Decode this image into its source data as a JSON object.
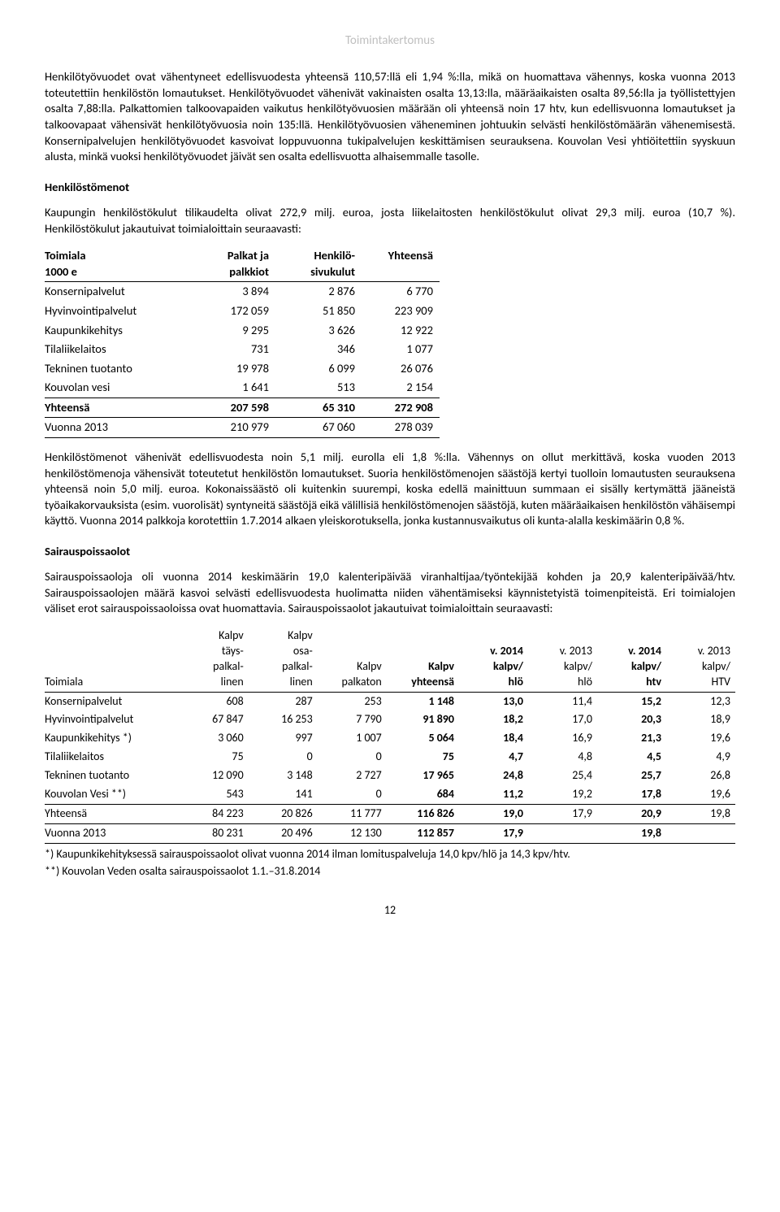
{
  "header": "Toimintakertomus",
  "para1": "Henkilötyövuodet ovat vähentyneet edellisvuodesta yhteensä 110,57:llä eli 1,94 %:lla, mikä on huomattava vähennys, koska vuonna 2013 toteutettiin henkilöstön lomautukset. Henkilötyövuodet vähenivät vakinaisten osalta 13,13:lla, määräaikaisten osalta 89,56:lla ja työllistettyjen osalta 7,88:lla. Palkattomien talkoovapaiden vaikutus henkilötyövuosien määrään oli yhteensä noin 17 htv, kun edellisvuonna lomautukset ja talkoovapaat vähensivät henkilötyövuosia noin 135:llä. Henkilötyövuosien väheneminen johtuukin selvästi henkilöstömäärän vähenemisestä. Konsernipalvelujen henkilötyövuodet kasvoivat loppuvuonna tukipalvelujen keskittämisen seurauksena. Kouvolan Vesi yhtiöitettiin syyskuun alusta, minkä vuoksi henkilötyövuodet jäivät sen osalta edellisvuotta alhaisemmalle tasolle.",
  "heading1": "Henkilöstömenot",
  "para2": "Kaupungin henkilöstökulut tilikaudelta olivat 272,9 milj. euroa, josta liikelaitosten henkilöstökulut olivat 29,3 milj. euroa (10,7 %). Henkilöstökulut jakautuivat toimialoittain seuraavasti:",
  "table1": {
    "columns": [
      {
        "l1": "Toimiala",
        "l2": "1000 e"
      },
      {
        "l1": "Palkat ja",
        "l2": "palkkiot"
      },
      {
        "l1": "Henkilö-",
        "l2": "sivukulut"
      },
      {
        "l1": "Yhteensä",
        "l2": ""
      }
    ],
    "rows": [
      {
        "label": "Konsernipalvelut",
        "c1": "3 894",
        "c2": "2 876",
        "c3": "6 770"
      },
      {
        "label": "Hyvinvointipalvelut",
        "c1": "172 059",
        "c2": "51 850",
        "c3": "223 909"
      },
      {
        "label": "Kaupunkikehitys",
        "c1": "9 295",
        "c2": "3 626",
        "c3": "12 922"
      },
      {
        "label": "Tilaliikelaitos",
        "c1": "731",
        "c2": "346",
        "c3": "1 077"
      },
      {
        "label": "Tekninen tuotanto",
        "c1": "19 978",
        "c2": "6 099",
        "c3": "26 076"
      },
      {
        "label": "Kouvolan vesi",
        "c1": "1 641",
        "c2": "513",
        "c3": "2 154"
      }
    ],
    "total": {
      "label": "Yhteensä",
      "c1": "207 598",
      "c2": "65 310",
      "c3": "272 908"
    },
    "prev": {
      "label": "Vuonna 2013",
      "c1": "210 979",
      "c2": "67 060",
      "c3": "278 039"
    }
  },
  "para3": "Henkilöstömenot vähenivät edellisvuodesta noin 5,1 milj. eurolla eli 1,8 %:lla. Vähennys on ollut merkittävä, koska vuoden 2013 henkilöstömenoja vähensivät toteutetut henkilöstön lomautukset. Suoria henkilöstömenojen säästöjä kertyi tuolloin lomautusten seurauksena yhteensä noin 5,0 milj. euroa. Kokonaissäästö oli kuitenkin suurempi, koska edellä mainittuun summaan ei sisälly kertymättä jääneistä työaikakorvauksista (esim. vuorolisät) syntyneitä säästöjä eikä välillisiä henkilöstömenojen säästöjä, kuten määräaikaisen henkilöstön vähäisempi käyttö. Vuonna 2014 palkkoja korotettiin 1.7.2014 alkaen yleiskorotuksella, jonka kustannusvaikutus oli kunta-alalla keskimäärin 0,8 %.",
  "heading2": "Sairauspoissaolot",
  "para4": "Sairauspoissaoloja oli vuonna 2014 keskimäärin 19,0 kalenteripäivää viranhaltijaa/työntekijää kohden ja 20,9 kalenteripäivää/htv. Sairauspoissaolojen määrä kasvoi selvästi edellisvuodesta huolimatta niiden vähentämiseksi käynnistetyistä toimenpiteistä. Eri toimialojen väliset erot sairauspoissaoloissa ovat huomattavia. Sairauspoissaolot jakautuivat toimialoittain seuraavasti:",
  "table2": {
    "columns": [
      "Toimiala",
      "Kalpv täys-palkal-linen",
      "Kalpv osa-palkal-linen",
      "Kalpv palkaton",
      "Kalpv yhteensä",
      "v. 2014 kalpv/ hlö",
      "v. 2013 kalpv/ hlö",
      "v. 2014 kalpv/ htv",
      "v. 2013 kalpv/ HTV"
    ],
    "rows": [
      {
        "label": "Konsernipalvelut",
        "c": [
          "608",
          "287",
          "253",
          "1 148",
          "13,0",
          "11,4",
          "15,2",
          "12,3"
        ]
      },
      {
        "label": "Hyvinvointipalvelut",
        "c": [
          "67 847",
          "16 253",
          "7 790",
          "91 890",
          "18,2",
          "17,0",
          "20,3",
          "18,9"
        ]
      },
      {
        "label": "Kaupunkikehitys *)",
        "c": [
          "3 060",
          "997",
          "1 007",
          "5 064",
          "18,4",
          "16,9",
          "21,3",
          "19,6"
        ]
      },
      {
        "label": "Tilaliikelaitos",
        "c": [
          "75",
          "0",
          "0",
          "75",
          "4,7",
          "4,8",
          "4,5",
          "4,9"
        ]
      },
      {
        "label": "Tekninen tuotanto",
        "c": [
          "12 090",
          "3 148",
          "2 727",
          "17 965",
          "24,8",
          "25,4",
          "25,7",
          "26,8"
        ]
      },
      {
        "label": "Kouvolan Vesi **)",
        "c": [
          "543",
          "141",
          "0",
          "684",
          "11,2",
          "19,2",
          "17,8",
          "19,6"
        ]
      }
    ],
    "total": {
      "label": "Yhteensä",
      "c": [
        "84 223",
        "20 826",
        "11 777",
        "116 826",
        "19,0",
        "17,9",
        "20,9",
        "19,8"
      ]
    },
    "prev": {
      "label": "Vuonna 2013",
      "c": [
        "80 231",
        "20 496",
        "12 130",
        "112 857",
        "17,9",
        "",
        "19,8",
        ""
      ]
    }
  },
  "footnote1": "*) Kaupunkikehityksessä sairauspoissaolot olivat vuonna 2014 ilman lomituspalveluja 14,0 kpv/hlö ja 14,3 kpv/htv.",
  "footnote2": "**) Kouvolan Veden osalta sairauspoissaolot 1.1.–31.8.2014",
  "pagenum": "12"
}
